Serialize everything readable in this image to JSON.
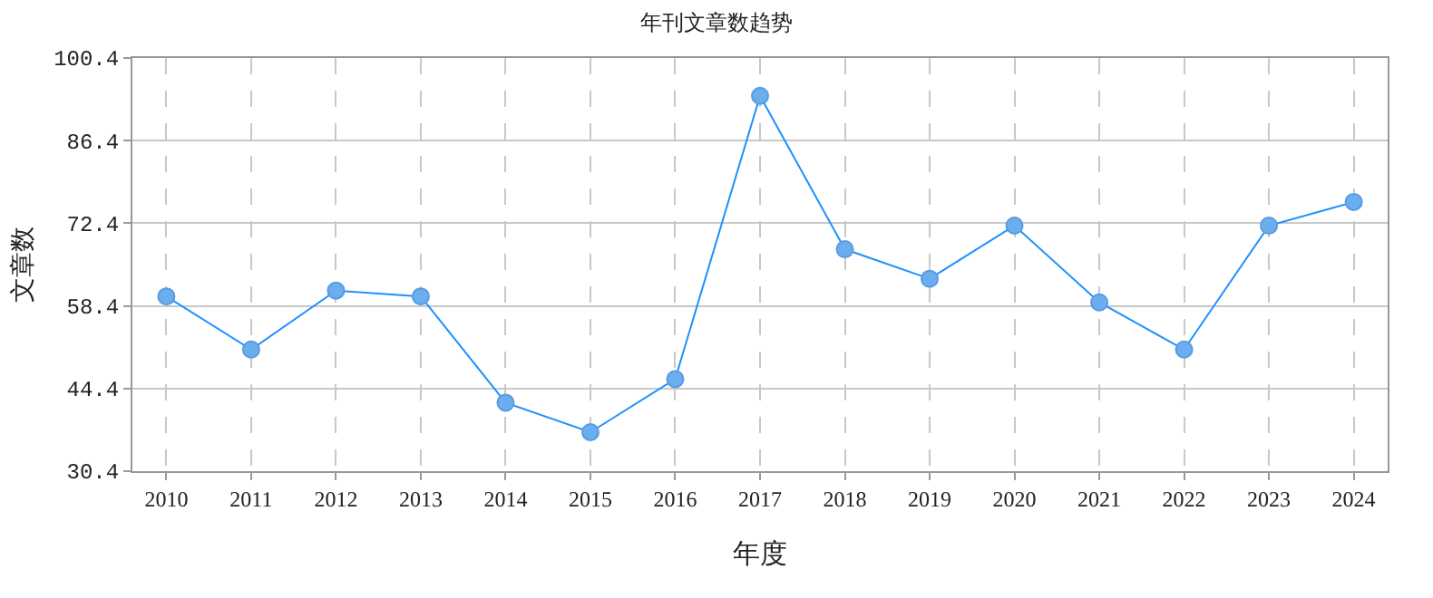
{
  "chart_data": {
    "type": "line",
    "title": "年刊文章数趋势",
    "xlabel": "年度",
    "ylabel": "文章数",
    "categories": [
      "2010",
      "2011",
      "2012",
      "2013",
      "2014",
      "2015",
      "2016",
      "2017",
      "2018",
      "2019",
      "2020",
      "2021",
      "2022",
      "2023",
      "2024"
    ],
    "series": [
      {
        "color": "#1e90ff",
        "values": [
          60,
          51,
          61,
          60,
          42,
          37,
          46,
          94,
          68,
          63,
          72,
          59,
          51,
          72,
          76
        ]
      }
    ],
    "ylim": [
      30.4,
      100.4
    ],
    "yticks": [
      30.4,
      44.4,
      58.4,
      72.4,
      86.4,
      100.4
    ],
    "grid": true,
    "legend": false,
    "marker": "circle",
    "line_style": "solid"
  }
}
